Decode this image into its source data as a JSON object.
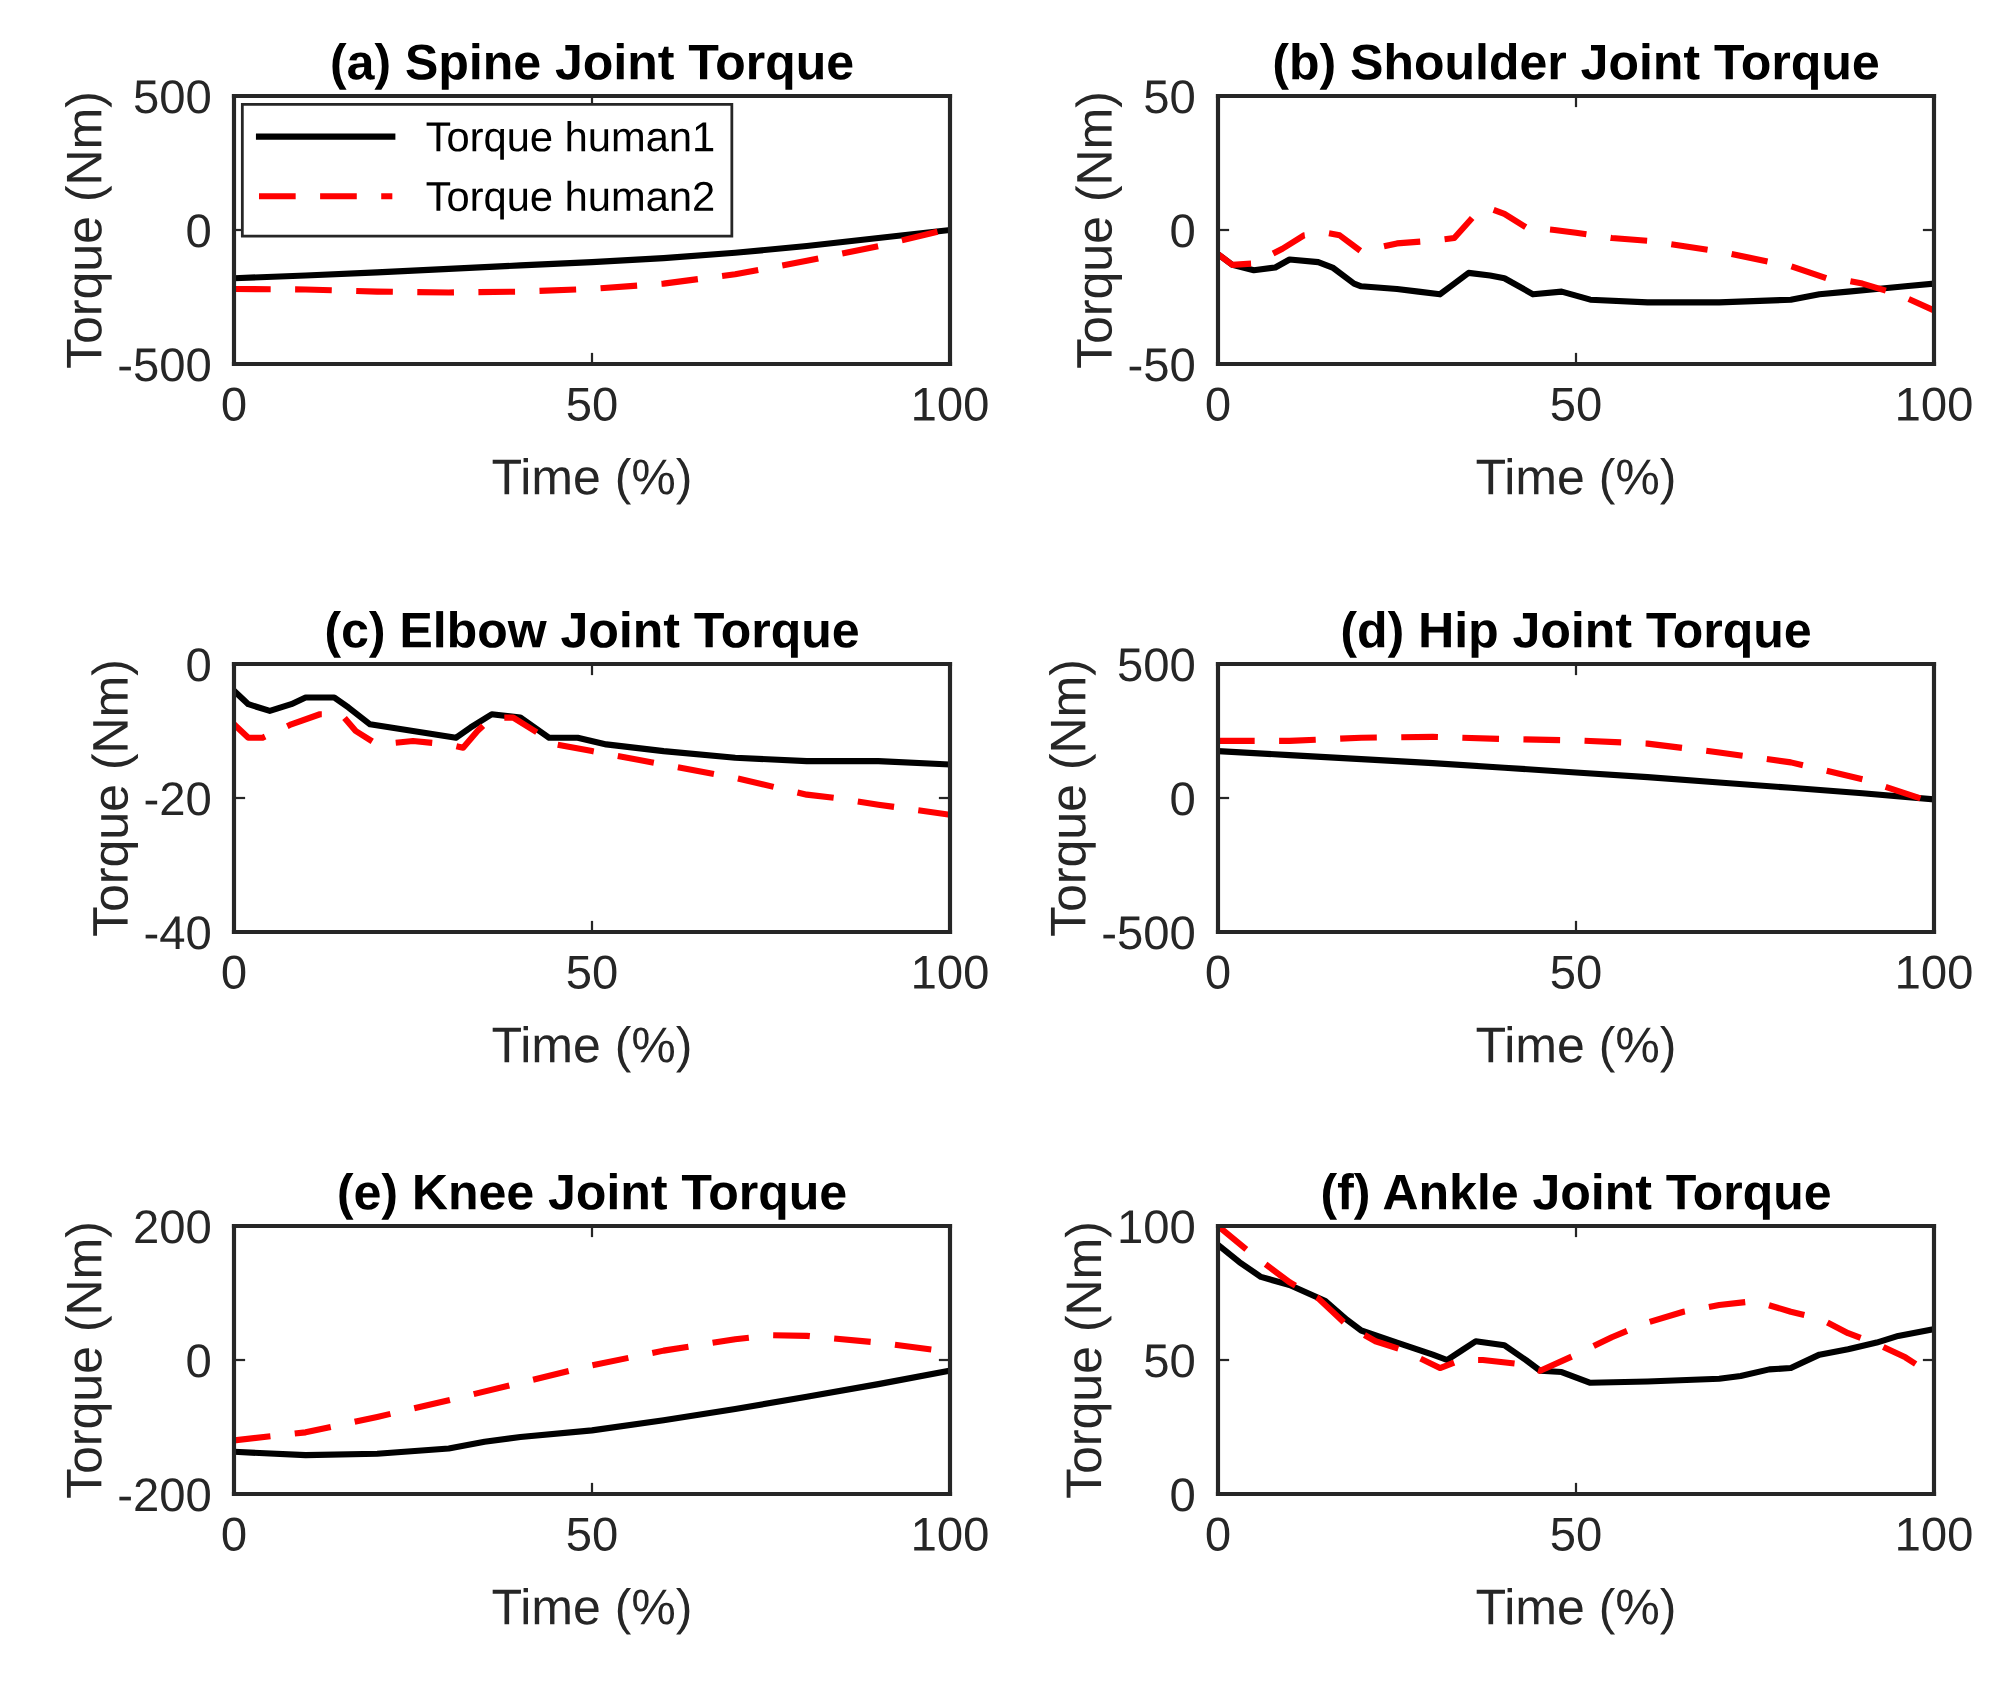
{
  "chart_data": [
    {
      "type": "line",
      "title": "(a) Spine Joint Torque",
      "xlabel": "Time (%)",
      "ylabel": "Torque (Nm)",
      "xlim": [
        0,
        100
      ],
      "ylim": [
        -500,
        500
      ],
      "xticks": [
        0,
        50,
        100
      ],
      "yticks": [
        -500,
        0,
        500
      ],
      "grid": false,
      "legend": "top left",
      "series": [
        {
          "name": "Torque human1",
          "color": "#000000",
          "line_style": "solid",
          "x": [
            0,
            10,
            20,
            30,
            40,
            50,
            60,
            70,
            80,
            90,
            100
          ],
          "values": [
            -180,
            -170,
            -158,
            -145,
            -132,
            -120,
            -105,
            -85,
            -60,
            -30,
            0
          ]
        },
        {
          "name": "Torque human2",
          "color": "#ff0000",
          "line_style": "dashed",
          "x": [
            0,
            10,
            20,
            30,
            40,
            50,
            60,
            70,
            80,
            90,
            100
          ],
          "values": [
            -220,
            -222,
            -230,
            -233,
            -230,
            -220,
            -200,
            -165,
            -115,
            -60,
            5
          ]
        }
      ]
    },
    {
      "type": "line",
      "title": "(b) Shoulder Joint Torque",
      "xlabel": "Time (%)",
      "ylabel": "Torque (Nm)",
      "xlim": [
        0,
        100
      ],
      "ylim": [
        -50,
        50
      ],
      "xticks": [
        0,
        50,
        100
      ],
      "yticks": [
        -50,
        0,
        50
      ],
      "grid": false,
      "series": [
        {
          "color": "#000000",
          "line_style": "solid",
          "x": [
            0,
            2,
            5,
            8,
            10,
            14,
            16,
            19,
            20,
            25,
            28,
            31,
            33,
            35,
            38,
            40,
            44,
            48,
            52,
            60,
            70,
            80,
            84,
            88,
            92,
            96,
            100
          ],
          "values": [
            -9,
            -13,
            -15,
            -14,
            -11,
            -12,
            -14,
            -20,
            -21,
            -22,
            -23,
            -24,
            -20,
            -16,
            -17,
            -18,
            -24,
            -23,
            -26,
            -27,
            -27,
            -26,
            -24,
            -23,
            -22,
            -21,
            -20
          ]
        },
        {
          "color": "#ff0000",
          "line_style": "dashed",
          "x": [
            0,
            2,
            5,
            9,
            12,
            15,
            17,
            20,
            25,
            30,
            33,
            36,
            38,
            40,
            43,
            47,
            50,
            55,
            60,
            70,
            80,
            85,
            88,
            90,
            95,
            100
          ],
          "values": [
            -9,
            -13,
            -12.5,
            -7,
            -2,
            -1,
            -2,
            -8,
            -5,
            -4,
            -3,
            6,
            8,
            6,
            1,
            0,
            -1,
            -3,
            -4,
            -8,
            -13.5,
            -18,
            -19,
            -20,
            -24,
            -30
          ]
        }
      ]
    },
    {
      "type": "line",
      "title": "(c) Elbow Joint Torque",
      "xlabel": "Time (%)",
      "ylabel": "Torque (Nm)",
      "xlim": [
        0,
        100
      ],
      "ylim": [
        -40,
        0
      ],
      "xticks": [
        0,
        50,
        100
      ],
      "yticks": [
        -40,
        -20,
        0
      ],
      "grid": false,
      "series": [
        {
          "color": "#000000",
          "line_style": "solid",
          "x": [
            0,
            2,
            5,
            8,
            10,
            14,
            16,
            19,
            25,
            31,
            33,
            36,
            40,
            44,
            48,
            52,
            60,
            70,
            80,
            84,
            90,
            100
          ],
          "values": [
            -4,
            -6,
            -7,
            -6,
            -5,
            -5,
            -6.5,
            -9,
            -10,
            -11,
            -9.5,
            -7.5,
            -8,
            -11,
            -11,
            -12,
            -13,
            -14,
            -14.5,
            -14.5,
            -14.5,
            -15
          ]
        },
        {
          "color": "#ff0000",
          "line_style": "dashed",
          "x": [
            0,
            2,
            4,
            8,
            12,
            15,
            17,
            20,
            25,
            30,
            32,
            34,
            36,
            39,
            42,
            45,
            50,
            60,
            70,
            80,
            84,
            90,
            100
          ],
          "values": [
            -9,
            -11,
            -11,
            -9,
            -7.5,
            -7.5,
            -10,
            -12,
            -11.5,
            -12,
            -12.5,
            -10,
            -8,
            -8,
            -10,
            -12,
            -13,
            -15,
            -17,
            -19.5,
            -20,
            -21,
            -22.5
          ]
        }
      ]
    },
    {
      "type": "line",
      "title": "(d) Hip Joint Torque",
      "xlabel": "Time (%)",
      "ylabel": "Torque (Nm)",
      "xlim": [
        0,
        100
      ],
      "ylim": [
        -500,
        500
      ],
      "xticks": [
        0,
        50,
        100
      ],
      "yticks": [
        -500,
        0,
        500
      ],
      "grid": false,
      "series": [
        {
          "color": "#000000",
          "line_style": "solid",
          "x": [
            0,
            10,
            20,
            30,
            40,
            50,
            60,
            70,
            80,
            90,
            100
          ],
          "values": [
            175,
            160,
            145,
            130,
            113,
            95,
            78,
            58,
            38,
            18,
            -5
          ]
        },
        {
          "color": "#ff0000",
          "line_style": "dashed",
          "x": [
            0,
            10,
            20,
            30,
            40,
            50,
            60,
            70,
            80,
            90,
            100
          ],
          "values": [
            213,
            213,
            225,
            228,
            220,
            215,
            203,
            170,
            133,
            70,
            -18
          ]
        }
      ]
    },
    {
      "type": "line",
      "title": "(e) Knee Joint Torque",
      "xlabel": "Time (%)",
      "ylabel": "Torque (Nm)",
      "xlim": [
        0,
        100
      ],
      "ylim": [
        -200,
        200
      ],
      "xticks": [
        0,
        50,
        100
      ],
      "yticks": [
        -200,
        0,
        200
      ],
      "grid": false,
      "series": [
        {
          "color": "#000000",
          "line_style": "solid",
          "x": [
            0,
            10,
            20,
            30,
            35,
            40,
            50,
            60,
            70,
            80,
            90,
            100
          ],
          "values": [
            -137,
            -142,
            -140,
            -132,
            -122,
            -115,
            -105,
            -90,
            -73,
            -55,
            -36,
            -16
          ]
        },
        {
          "color": "#ff0000",
          "line_style": "dashed",
          "x": [
            0,
            10,
            20,
            30,
            40,
            50,
            60,
            70,
            75,
            80,
            90,
            100
          ],
          "values": [
            -120,
            -108,
            -85,
            -60,
            -34,
            -8,
            14,
            31,
            37,
            36,
            26,
            12
          ]
        }
      ]
    },
    {
      "type": "line",
      "title": "(f) Ankle Joint Torque",
      "xlabel": "Time (%)",
      "ylabel": "Torque (Nm)",
      "xlim": [
        0,
        100
      ],
      "ylim": [
        0,
        100
      ],
      "xticks": [
        0,
        50,
        100
      ],
      "yticks": [
        0,
        50,
        100
      ],
      "grid": false,
      "series": [
        {
          "color": "#000000",
          "line_style": "solid",
          "x": [
            0,
            3,
            6,
            10,
            15,
            18,
            20,
            25,
            30,
            32,
            34,
            36,
            40,
            43,
            45,
            48,
            52,
            60,
            70,
            73,
            77,
            80,
            84,
            88,
            92,
            95,
            100
          ],
          "values": [
            93,
            86.5,
            81,
            78,
            72,
            65,
            61,
            56.5,
            52,
            50,
            53.5,
            57,
            55.5,
            50,
            46,
            45.5,
            41.5,
            42,
            43,
            44,
            46.5,
            47,
            52,
            54,
            56.5,
            59,
            61.5
          ]
        },
        {
          "color": "#ff0000",
          "line_style": "dashed",
          "x": [
            0,
            5,
            10,
            14,
            18,
            22,
            26,
            31,
            34,
            37,
            42,
            45,
            50,
            55,
            60,
            65,
            70,
            75,
            80,
            84,
            88,
            92,
            96,
            100
          ],
          "values": [
            100,
            89,
            79,
            73,
            63,
            57,
            53.5,
            47,
            50,
            50,
            48.5,
            46,
            52,
            58.5,
            64,
            68,
            70.5,
            72,
            68,
            65.5,
            60,
            56,
            51,
            44
          ]
        }
      ]
    }
  ]
}
